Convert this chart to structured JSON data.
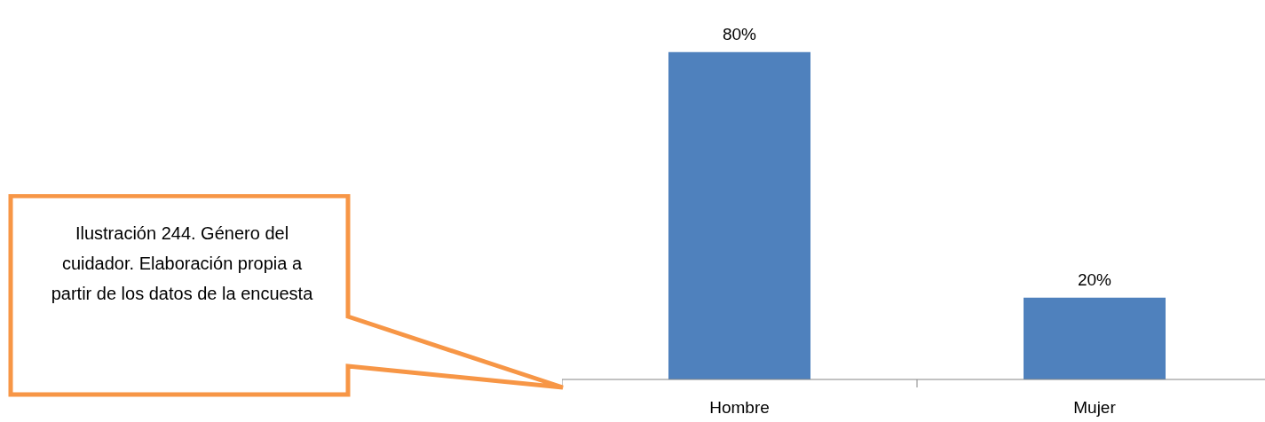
{
  "chart_data": {
    "type": "bar",
    "categories": [
      "Hombre",
      "Mujer"
    ],
    "values": [
      80,
      20
    ],
    "value_labels": [
      "80%",
      "20%"
    ],
    "color": "#4f81bd",
    "annotations": [
      "Ilustración 244. Género del cuidador. Elaboración propia a partir de los datos de la encuesta"
    ]
  }
}
